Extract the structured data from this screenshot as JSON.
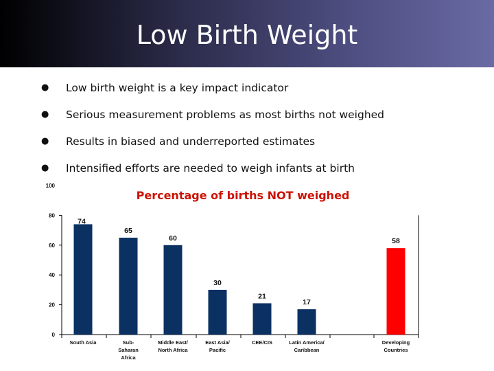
{
  "slide": {
    "title": "Low Birth Weight",
    "bullets": [
      "Low birth weight is a key impact indicator",
      "Serious measurement problems as most births not weighed",
      "Results in biased and underreported estimates",
      "Intensified efforts are needed to weigh infants at birth"
    ]
  },
  "chart_data": {
    "type": "bar",
    "title": "Percentage of births NOT weighed",
    "categories": [
      [
        "South Asia"
      ],
      [
        "Sub-",
        "Saharan",
        "Africa"
      ],
      [
        "Middle East/",
        "North Africa"
      ],
      [
        "East Asia/",
        "Pacific"
      ],
      [
        "CEE/CIS"
      ],
      [
        "Latin America/",
        "Caribbean"
      ],
      [
        "Developing",
        "Countries"
      ]
    ],
    "values": [
      74,
      65,
      60,
      30,
      21,
      17,
      58
    ],
    "colors": [
      "#0b3163",
      "#0b3163",
      "#0b3163",
      "#0b3163",
      "#0b3163",
      "#0b3163",
      "#ff0000"
    ],
    "yticks": [
      0,
      20,
      40,
      60,
      80,
      100
    ],
    "ylim": [
      0,
      100
    ],
    "grid": false
  }
}
